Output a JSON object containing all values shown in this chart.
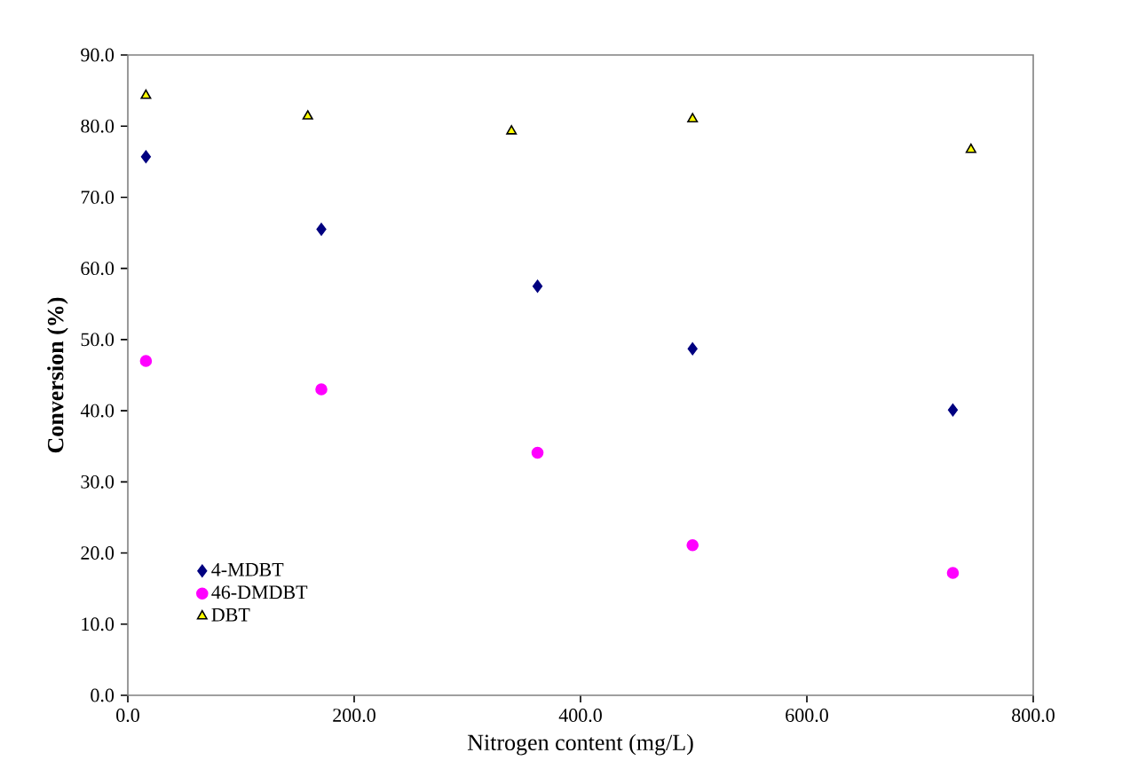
{
  "chart_data": {
    "type": "scatter",
    "xlabel": "Nitrogen content (mg/L)",
    "ylabel": "Conversion (%)",
    "xlim": [
      0,
      800
    ],
    "ylim": [
      0,
      90
    ],
    "xticks": [
      {
        "value": 0,
        "label": "0.0"
      },
      {
        "value": 200,
        "label": "200.0"
      },
      {
        "value": 400,
        "label": "400.0"
      },
      {
        "value": 600,
        "label": "600.0"
      },
      {
        "value": 800,
        "label": "800.0"
      }
    ],
    "yticks": [
      {
        "value": 0,
        "label": "0.0"
      },
      {
        "value": 10,
        "label": "10.0"
      },
      {
        "value": 20,
        "label": "20.0"
      },
      {
        "value": 30,
        "label": "30.0"
      },
      {
        "value": 40,
        "label": "40.0"
      },
      {
        "value": 50,
        "label": "50.0"
      },
      {
        "value": 60,
        "label": "60.0"
      },
      {
        "value": 70,
        "label": "70.0"
      },
      {
        "value": 80,
        "label": "80.0"
      },
      {
        "value": 90,
        "label": "90.0"
      }
    ],
    "grid": false,
    "legend": "bottom left",
    "series": [
      {
        "name": "4-MDBT",
        "color": "#000080",
        "marker": "diamond",
        "x": [
          16,
          171,
          362,
          499,
          729
        ],
        "values": [
          75.7,
          65.5,
          57.5,
          48.7,
          40.1
        ]
      },
      {
        "name": "46-DMDBT",
        "color": "#ff00ff",
        "marker": "circle",
        "x": [
          16,
          171,
          362,
          499,
          729
        ],
        "values": [
          47.0,
          43.0,
          34.1,
          21.1,
          17.2
        ]
      },
      {
        "name": "DBT",
        "color": "#ffff00",
        "marker": "triangle",
        "x": [
          16,
          159,
          339,
          499,
          745
        ],
        "values": [
          84.3,
          81.4,
          79.3,
          81.0,
          76.7
        ]
      }
    ]
  }
}
